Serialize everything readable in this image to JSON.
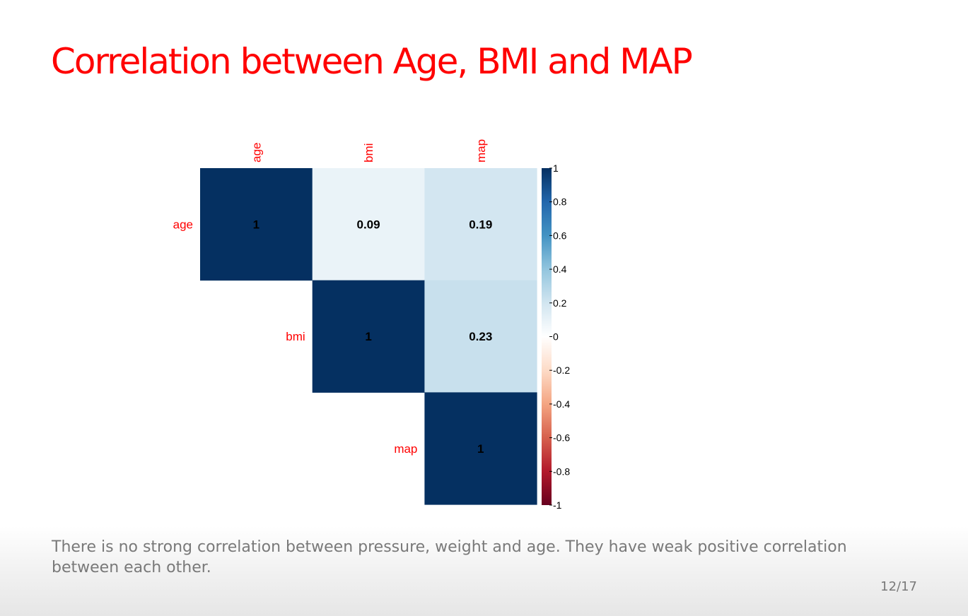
{
  "slide": {
    "title": "Correlation between Age, BMI and MAP",
    "caption": "There is no strong correlation between pressure, weight and age. They have weak positive correlation between each other.",
    "page_number": "12/17"
  },
  "chart_data": {
    "type": "heatmap",
    "variables": [
      "age",
      "bmi",
      "map"
    ],
    "matrix": [
      [
        1,
        0.09,
        0.19
      ],
      [
        null,
        1,
        0.23
      ],
      [
        null,
        null,
        1
      ]
    ],
    "cell_labels": [
      [
        "1",
        "0.09",
        "0.19"
      ],
      [
        "",
        "1",
        "0.23"
      ],
      [
        "",
        "",
        "1"
      ]
    ],
    "layout": "upper-triangle",
    "colorbar": {
      "range": [
        -1,
        1
      ],
      "ticks": [
        1,
        0.8,
        0.6,
        0.4,
        0.2,
        0,
        -0.2,
        -0.4,
        -0.6,
        -0.8,
        -1
      ],
      "tick_labels": [
        "1",
        "0.8",
        "0.6",
        "0.4",
        "0.2",
        "0",
        "-0.2",
        "-0.4",
        "-0.6",
        "-0.8",
        "-1"
      ],
      "colors": [
        "#67001f",
        "#b2182b",
        "#d6604d",
        "#f4a582",
        "#fddbc7",
        "#ffffff",
        "#d1e5f0",
        "#92c5de",
        "#4393c3",
        "#2166ac",
        "#053061"
      ]
    },
    "label_color": "#ff0000",
    "title": "",
    "xlabel": "",
    "ylabel": ""
  }
}
